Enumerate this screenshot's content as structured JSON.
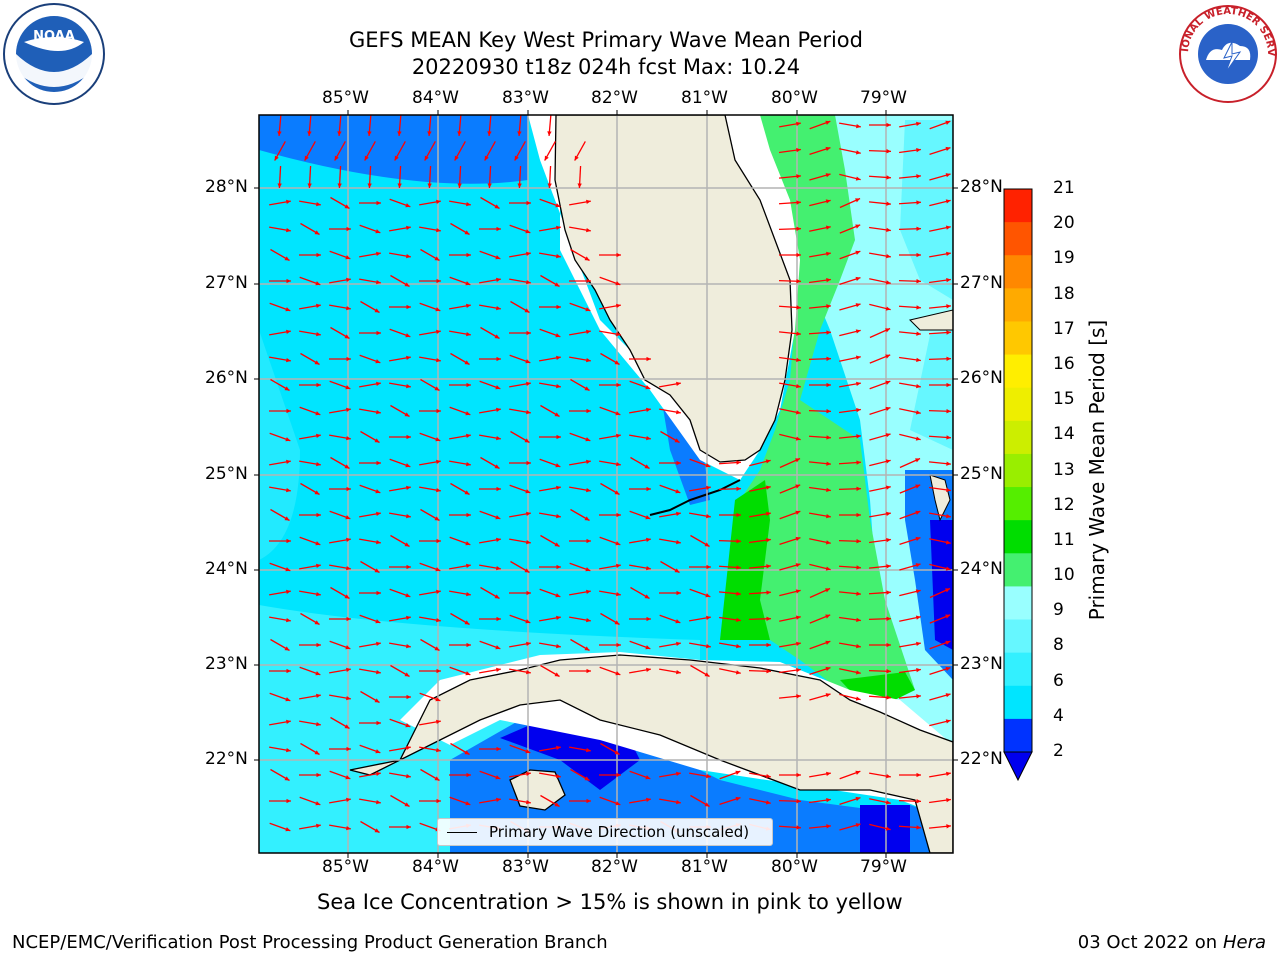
{
  "header": {
    "title_line1": "GEFS MEAN Key West Primary Wave Mean Period",
    "title_line2": "20220930 t18z 024h fcst   Max: 10.24"
  },
  "logos": [
    {
      "name": "noaa-logo",
      "text": "NOAA"
    },
    {
      "name": "nws-logo",
      "text": "NATIONAL WEATHER SERVICE"
    }
  ],
  "map": {
    "lon_labels": [
      "85°W",
      "84°W",
      "83°W",
      "82°W",
      "81°W",
      "80°W",
      "79°W"
    ],
    "lat_labels": [
      "28°N",
      "27°N",
      "26°N",
      "25°N",
      "24°N",
      "23°N",
      "22°N"
    ],
    "legend_label": "Primary Wave Direction (unscaled)",
    "arrow_color": "#ff0000",
    "land_color": "#efeddc",
    "grid_color": "#b4b4b4"
  },
  "colorbar": {
    "label": "Primary Wave Mean Period [s]",
    "ticks": [
      "2",
      "4",
      "6",
      "8",
      "9",
      "10",
      "11",
      "12",
      "13",
      "14",
      "15",
      "16",
      "17",
      "18",
      "19",
      "20",
      "21"
    ],
    "colors": [
      "#0033ff",
      "#00e5ff",
      "#33f0ff",
      "#66f7ff",
      "#99ffff",
      "#44f070",
      "#00dd00",
      "#55ee00",
      "#99ee00",
      "#ccee00",
      "#eeee00",
      "#ffee00",
      "#ffc800",
      "#ffaa00",
      "#ff8800",
      "#ff5500",
      "#ff2200",
      "#ff0000"
    ],
    "under_color": "#0000ee"
  },
  "footnote": "Sea Ice Concentration > 15% is shown in pink to yellow",
  "footer": {
    "left": "NCEP/EMC/Verification Post Processing Product Generation Branch",
    "right_prefix": "03 Oct 2022 on ",
    "right_host": "Hera"
  }
}
